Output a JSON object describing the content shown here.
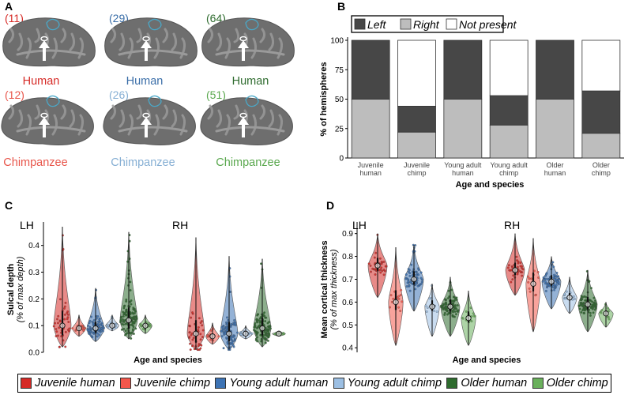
{
  "panels": {
    "a": {
      "letter": "A",
      "brains": [
        {
          "count": "(11)",
          "label": "Human",
          "color": "#d62a26"
        },
        {
          "count": "(29)",
          "label": "Human",
          "color": "#3a6ea8"
        },
        {
          "count": "(64)",
          "label": "Human",
          "color": "#2e6b2e"
        },
        {
          "count": "(12)",
          "label": "Chimpanzee",
          "color": "#e8564b"
        },
        {
          "count": "(26)",
          "label": "Chimpanzee",
          "color": "#86afd4"
        },
        {
          "count": "(51)",
          "label": "Chimpanzee",
          "color": "#5aa84e"
        }
      ]
    },
    "b": {
      "letter": "B"
    },
    "c": {
      "letter": "C",
      "left_label": "LH",
      "right_label": "RH"
    },
    "d": {
      "letter": "D",
      "left_label": "LH",
      "right_label": "RH"
    }
  },
  "legend": [
    {
      "label": "Juvenile human",
      "color": "#d62a26"
    },
    {
      "label": "Juvenile chimp",
      "color": "#f2574b"
    },
    {
      "label": "Young adult human",
      "color": "#3d73b4"
    },
    {
      "label": "Young adult chimp",
      "color": "#9cbfe3"
    },
    {
      "label": "Older human",
      "color": "#2e6b2e"
    },
    {
      "label": "Older chimp",
      "color": "#6ab05c"
    }
  ],
  "chart_data": [
    {
      "type": "bar",
      "title": "",
      "stacked": true,
      "xlabel": "Age and species",
      "ylabel": "% of hemispheres",
      "ylim": [
        0,
        100
      ],
      "yticks": [
        0,
        25,
        50,
        75,
        100
      ],
      "categories": [
        "Juvenile human",
        "Juvenile chimp",
        "Young adult human",
        "Young adult chimp",
        "Older human",
        "Older chimp"
      ],
      "series": [
        {
          "name": "Right",
          "color": "#bdbdbd",
          "values": [
            50,
            22,
            50,
            28,
            50,
            21
          ]
        },
        {
          "name": "Left",
          "color": "#474747",
          "values": [
            50,
            22,
            50,
            25,
            50,
            36
          ]
        },
        {
          "name": "Not present",
          "color": "#ffffff",
          "values": [
            0,
            56,
            0,
            47,
            0,
            43
          ]
        }
      ],
      "legend": [
        "Left",
        "Right",
        "Not present"
      ]
    },
    {
      "type": "violin",
      "xlabel": "Age and species",
      "ylabel": "Sulcal depth",
      "ylabel_sub": "(% of max depth)",
      "ylim": [
        0,
        0.47
      ],
      "yticks": [
        0.0,
        0.1,
        0.2,
        0.3,
        0.4
      ],
      "groups": [
        "Juvenile human",
        "Juvenile chimp",
        "Young adult human",
        "Young adult chimp",
        "Older human",
        "Older chimp"
      ],
      "LH": {
        "median": [
          0.1,
          0.09,
          0.09,
          0.1,
          0.12,
          0.1
        ],
        "min": [
          0.02,
          0.06,
          0.04,
          0.08,
          0.05,
          0.07
        ],
        "max": [
          0.47,
          0.14,
          0.24,
          0.14,
          0.45,
          0.14
        ]
      },
      "RH": {
        "median": [
          0.07,
          0.06,
          0.07,
          0.07,
          0.09,
          0.07
        ],
        "min": [
          0.01,
          0.03,
          0.01,
          0.05,
          0.02,
          0.06
        ],
        "max": [
          0.43,
          0.11,
          0.36,
          0.1,
          0.35,
          0.08
        ]
      }
    },
    {
      "type": "violin",
      "xlabel": "Age and species",
      "ylabel": "Mean cortical thickness",
      "ylabel_sub": "(% of max thickness)",
      "ylim": [
        0.38,
        0.93
      ],
      "yticks": [
        0.4,
        0.5,
        0.6,
        0.7,
        0.8,
        0.9
      ],
      "groups": [
        "Juvenile human",
        "Juvenile chimp",
        "Young adult human",
        "Young adult chimp",
        "Older human",
        "Older chimp"
      ],
      "LH": {
        "median": [
          0.76,
          0.6,
          0.7,
          0.58,
          0.58,
          0.53
        ],
        "min": [
          0.62,
          0.41,
          0.56,
          0.45,
          0.45,
          0.41
        ],
        "max": [
          0.9,
          0.84,
          0.85,
          0.68,
          0.71,
          0.65
        ]
      },
      "RH": {
        "median": [
          0.74,
          0.68,
          0.69,
          0.62,
          0.59,
          0.55
        ],
        "min": [
          0.63,
          0.47,
          0.57,
          0.55,
          0.47,
          0.49
        ],
        "max": [
          0.9,
          0.88,
          0.8,
          0.71,
          0.74,
          0.6
        ]
      }
    }
  ]
}
